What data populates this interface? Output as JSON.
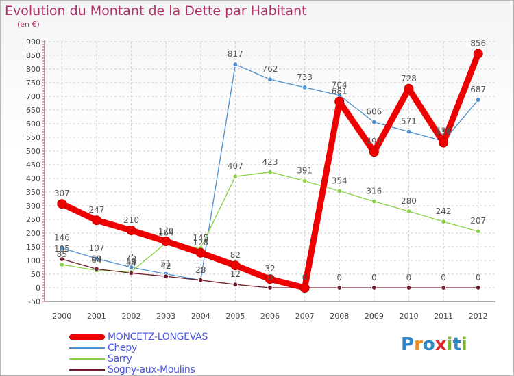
{
  "header": {
    "title": "Evolution du Montant de la Dette par Habitant",
    "unit": "(en €)"
  },
  "brand": {
    "logo_text": "Proxiti",
    "logo_letter_colors": [
      "#2e87c8",
      "#f08a1c",
      "#2e87c8",
      "#d8282a",
      "#7cb82f",
      "#2e87c8",
      "#7cb82f"
    ]
  },
  "chart_data": {
    "type": "line",
    "title": "Evolution du Montant de la Dette par Habitant",
    "subtitle": "(en €)",
    "xlabel": "",
    "ylabel": "",
    "x": [
      "2000",
      "2001",
      "2002",
      "2003",
      "2004",
      "2005",
      "2006",
      "2007",
      "2008",
      "2009",
      "2010",
      "2011",
      "2012"
    ],
    "ylim": [
      -50,
      900
    ],
    "yticks": [
      -50,
      0,
      50,
      100,
      150,
      200,
      250,
      300,
      350,
      400,
      450,
      500,
      550,
      600,
      650,
      700,
      750,
      800,
      850,
      900
    ],
    "grid": true,
    "legend_position": "bottom-left",
    "series": [
      {
        "name": "MONCETZ-LONGEVAS",
        "color": "#ee0000",
        "values": [
          307,
          247,
          210,
          170,
          128,
          82,
          32,
          0,
          681,
          497,
          728,
          531,
          856
        ],
        "labels": [
          "307",
          "247",
          "210",
          "170",
          "128",
          "82",
          "32",
          "0",
          "681",
          "497",
          "728",
          "531",
          "856"
        ]
      },
      {
        "name": "Chepy",
        "color": "#4d8ed0",
        "values": [
          146,
          107,
          75,
          51,
          28,
          817,
          762,
          733,
          704,
          606,
          571,
          536,
          687
        ],
        "labels": [
          "146",
          "107",
          "75",
          "51",
          "28",
          "817",
          "762",
          "733",
          "704",
          "606",
          "571",
          "536",
          "687"
        ]
      },
      {
        "name": "Sarry",
        "color": "#88d040",
        "values": [
          85,
          64,
          59,
          164,
          145,
          407,
          423,
          391,
          354,
          316,
          280,
          242,
          207
        ],
        "labels": [
          "85",
          "64",
          "59",
          "164",
          "145",
          "407",
          "423",
          "391",
          "354",
          "316",
          "280",
          "242",
          "207"
        ]
      },
      {
        "name": "Sogny-aux-Moulins",
        "color": "#6e1e2a",
        "values": [
          105,
          69,
          54,
          42,
          28,
          12,
          0,
          0,
          0,
          0,
          0,
          0,
          0
        ],
        "labels": [
          "105",
          "69",
          "54",
          "42",
          "28",
          "12",
          "0",
          "0",
          "0",
          "0",
          "0",
          "0",
          "0"
        ]
      }
    ]
  }
}
